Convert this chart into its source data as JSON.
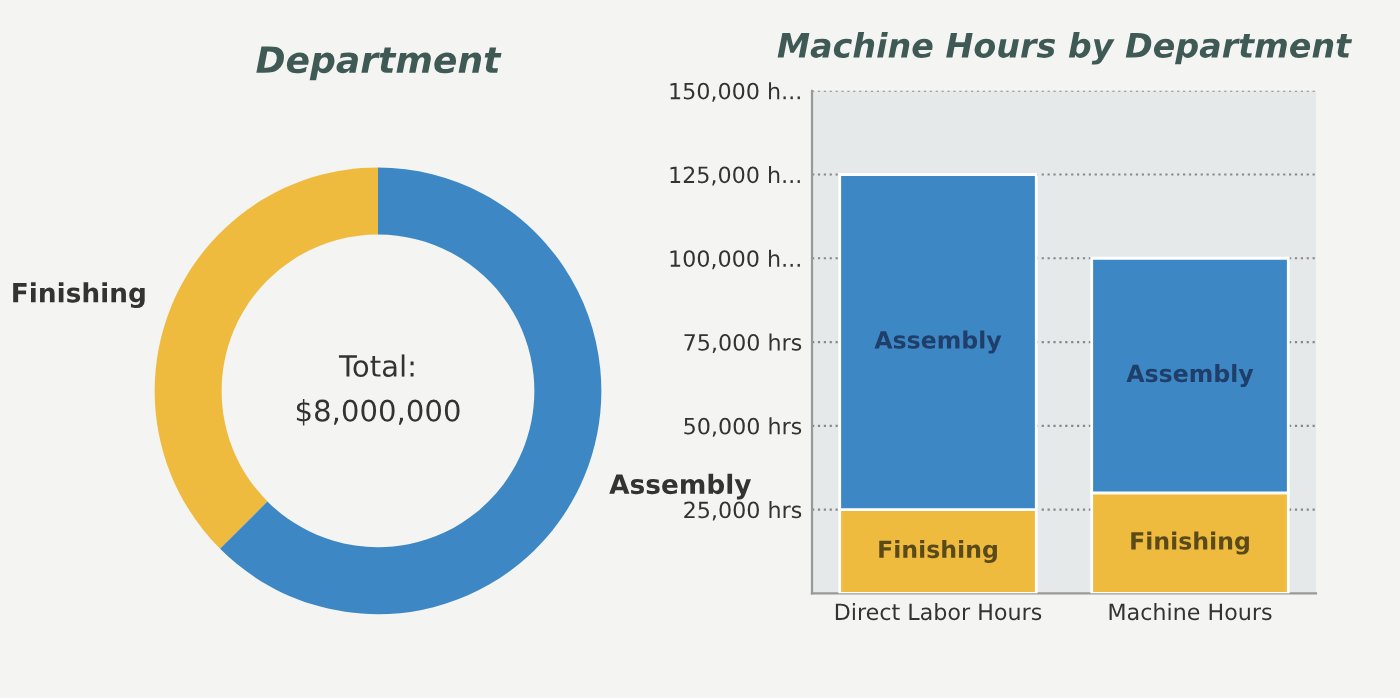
{
  "chart_data": [
    {
      "type": "donut",
      "title": "Department",
      "categories": [
        "Finishing",
        "Assembly"
      ],
      "values": [
        37.5,
        62.5
      ],
      "colors": [
        "#eebb3f",
        "#3d88c4"
      ],
      "annotations": [
        "Total:",
        "$8,000,000"
      ]
    },
    {
      "type": "bar",
      "title": "Machine Hours by Department",
      "categories": [
        "Direct Labor Hours",
        "Machine Hours"
      ],
      "stacked": true,
      "series": [
        {
          "name": "Finishing",
          "color": "#eebb3f",
          "values": [
            25000,
            30000
          ]
        },
        {
          "name": "Assembly",
          "color": "#3d88c4",
          "values": [
            100000,
            70000
          ]
        }
      ],
      "ylim": [
        0,
        150000
      ],
      "yticks": [
        {
          "value": 25000,
          "label": "25,000 hrs"
        },
        {
          "value": 50000,
          "label": "50,000 hrs"
        },
        {
          "value": 75000,
          "label": "75,000 hrs"
        },
        {
          "value": 100000,
          "label": "100,000 h..."
        },
        {
          "value": 125000,
          "label": "125,000 h..."
        },
        {
          "value": 150000,
          "label": "150,000 h..."
        }
      ],
      "grid": "y",
      "line_style": "dotted",
      "legend": false
    }
  ]
}
